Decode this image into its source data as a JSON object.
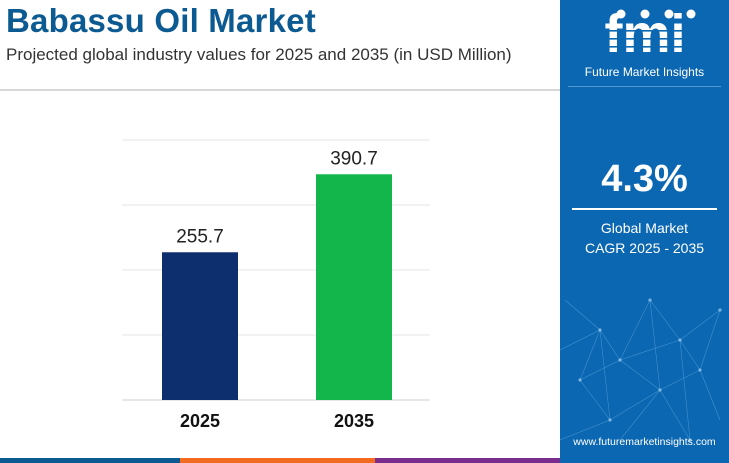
{
  "header": {
    "title": "Babassu Oil Market",
    "subtitle": "Projected global industry values for 2025 and 2035 (in USD Million)"
  },
  "chart_data": {
    "type": "bar",
    "categories": [
      "2025",
      "2035"
    ],
    "values": [
      255.7,
      390.7
    ],
    "value_labels": [
      "255.7",
      "390.7"
    ],
    "bar_colors": [
      "#0e2f6e",
      "#12b64a"
    ],
    "ylim": [
      0,
      450
    ],
    "grid": true,
    "title": "",
    "xlabel": "",
    "ylabel": ""
  },
  "sidebar": {
    "logo_text": "fmi",
    "brand": "Future Market Insights",
    "cagr_value": "4.3%",
    "cagr_label_line1": "Global Market",
    "cagr_label_line2": "CAGR 2025 - 2035",
    "website": "www.futuremarketinsights.com"
  },
  "colors": {
    "title": "#0c5a92",
    "panel": "#0b67b1",
    "stripe": [
      "#0c5a92",
      "#12b64a",
      "#f26b21",
      "#7a2d8c"
    ]
  }
}
